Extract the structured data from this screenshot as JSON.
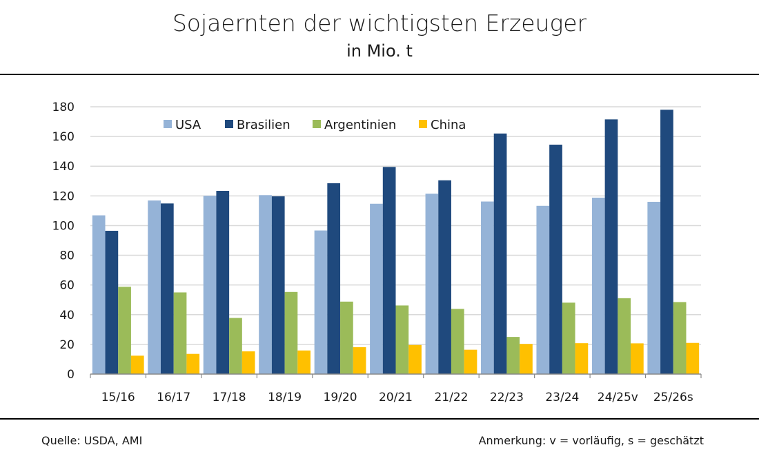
{
  "chart_data": {
    "type": "bar",
    "title": "Sojaernten der wichtigsten Erzeuger",
    "subtitle": "in Mio. t",
    "xlabel": "",
    "ylabel": "",
    "ylim": [
      0,
      180
    ],
    "yticks": [
      0,
      20,
      40,
      60,
      80,
      100,
      120,
      140,
      160,
      180
    ],
    "grid": true,
    "legend_position": "top",
    "categories": [
      "15/16",
      "16/17",
      "17/18",
      "18/19",
      "19/20",
      "20/21",
      "21/22",
      "22/23",
      "23/24",
      "24/25v",
      "25/26s"
    ],
    "series": [
      {
        "name": "USA",
        "color": "#95b3d7",
        "values": [
          106.9,
          116.9,
          120.1,
          120.5,
          96.7,
          114.7,
          121.5,
          116.2,
          113.3,
          118.8,
          116.0
        ]
      },
      {
        "name": "Brasilien",
        "color": "#1f497d",
        "values": [
          96.5,
          114.9,
          123.4,
          119.7,
          128.5,
          139.5,
          130.5,
          162.0,
          154.5,
          171.5,
          178.0
        ]
      },
      {
        "name": "Argentinien",
        "color": "#9bbb59",
        "values": [
          58.8,
          55.0,
          37.8,
          55.3,
          48.8,
          46.2,
          43.9,
          25.0,
          48.1,
          51.1,
          48.5
        ]
      },
      {
        "name": "China",
        "color": "#ffc000",
        "values": [
          12.4,
          13.6,
          15.3,
          15.9,
          18.1,
          19.6,
          16.4,
          20.3,
          20.8,
          20.7,
          21.0
        ]
      }
    ]
  },
  "footer": {
    "source": "Quelle: USDA, AMI",
    "note": "Anmerkung: v = vorläufig, s = geschätzt"
  }
}
